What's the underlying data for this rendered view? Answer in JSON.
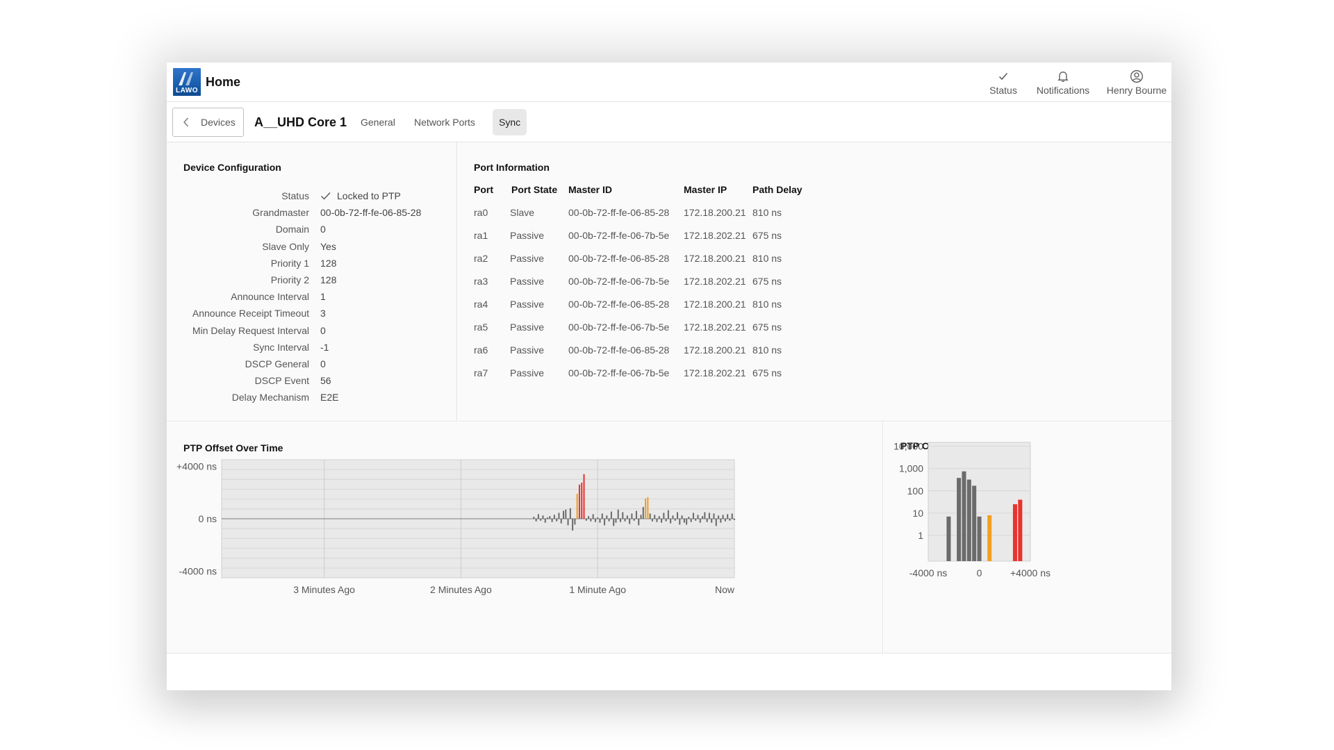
{
  "header": {
    "app_title": "Home",
    "logo_text": "LAWO",
    "actions": [
      {
        "label": "Status",
        "icon": "check-icon"
      },
      {
        "label": "Notifications",
        "icon": "bell-icon"
      },
      {
        "label": "Henry Bourne",
        "icon": "user-icon"
      }
    ]
  },
  "subnav": {
    "back_label": "Devices",
    "device_title": "A__UHD Core 1",
    "tabs": [
      {
        "label": "General",
        "active": false
      },
      {
        "label": "Network Ports",
        "active": false
      },
      {
        "label": "Sync",
        "active": true
      }
    ]
  },
  "device_config": {
    "title": "Device Configuration",
    "rows": [
      {
        "key": "Status",
        "value": "Locked to PTP",
        "icon": "check-icon"
      },
      {
        "key": "Grandmaster",
        "value": "00-0b-72-ff-fe-06-85-28"
      },
      {
        "key": "Domain",
        "value": "0"
      },
      {
        "key": "Slave Only",
        "value": "Yes"
      },
      {
        "key": "Priority 1",
        "value": "128"
      },
      {
        "key": "Priority 2",
        "value": "128"
      },
      {
        "key": "Announce Interval",
        "value": "1"
      },
      {
        "key": "Announce Receipt Timeout",
        "value": "3"
      },
      {
        "key": "Min Delay Request Interval",
        "value": "0"
      },
      {
        "key": "Sync Interval",
        "value": "-1"
      },
      {
        "key": "DSCP General",
        "value": "0"
      },
      {
        "key": "DSCP Event",
        "value": "56"
      },
      {
        "key": "Delay Mechanism",
        "value": "E2E"
      }
    ]
  },
  "port_info": {
    "title": "Port Information",
    "columns": [
      "Port",
      "Port State",
      "Master ID",
      "Master IP",
      "Path Delay"
    ],
    "rows": [
      [
        "ra0",
        "Slave",
        "00-0b-72-ff-fe-06-85-28",
        "172.18.200.21",
        "810 ns"
      ],
      [
        "ra1",
        "Passive",
        "00-0b-72-ff-fe-06-7b-5e",
        "172.18.202.21",
        "675 ns"
      ],
      [
        "ra2",
        "Passive",
        "00-0b-72-ff-fe-06-85-28",
        "172.18.200.21",
        "810 ns"
      ],
      [
        "ra3",
        "Passive",
        "00-0b-72-ff-fe-06-7b-5e",
        "172.18.202.21",
        "675 ns"
      ],
      [
        "ra4",
        "Passive",
        "00-0b-72-ff-fe-06-85-28",
        "172.18.200.21",
        "810 ns"
      ],
      [
        "ra5",
        "Passive",
        "00-0b-72-ff-fe-06-7b-5e",
        "172.18.202.21",
        "675 ns"
      ],
      [
        "ra6",
        "Passive",
        "00-0b-72-ff-fe-06-85-28",
        "172.18.200.21",
        "810 ns"
      ],
      [
        "ra7",
        "Passive",
        "00-0b-72-ff-fe-06-7b-5e",
        "172.18.202.21",
        "675 ns"
      ]
    ]
  },
  "colors": {
    "bar_normal": "#6b6b6b",
    "bar_warning": "#f0a020",
    "bar_alert": "#e8332e",
    "plot_bg": "#e9e9e9",
    "grid": "#d2d2d2"
  },
  "chart_data": [
    {
      "type": "bar",
      "title": "PTP Offset Over Time",
      "y_ticks": [
        "+4000 ns",
        "0 ns",
        "-4000 ns"
      ],
      "ylim": [
        -4500,
        4500
      ],
      "x_ticks": [
        "3 Minutes Ago",
        "2 Minutes Ago",
        "1 Minute Ago",
        "Now"
      ],
      "xlim": [
        -225,
        0
      ],
      "x_tick_values": [
        -180,
        -120,
        -60,
        0
      ],
      "grid": true,
      "thresholds": {
        "warning": 1000,
        "alert": 2000
      },
      "x": [
        -88,
        -87,
        -86,
        -85,
        -84,
        -83,
        -82,
        -81,
        -80,
        -79,
        -78,
        -77,
        -76,
        -75,
        -74,
        -73,
        -72,
        -71,
        -70,
        -69,
        -68,
        -67,
        -66,
        -65,
        -64,
        -63,
        -62,
        -61,
        -60,
        -59,
        -58,
        -57,
        -56,
        -55,
        -54,
        -53,
        -52,
        -51,
        -50,
        -49,
        -48,
        -47,
        -46,
        -45,
        -44,
        -43,
        -42,
        -41,
        -40,
        -39,
        -38,
        -37,
        -36,
        -35,
        -34,
        -33,
        -32,
        -31,
        -30,
        -29,
        -28,
        -27,
        -26,
        -25,
        -24,
        -23,
        -22,
        -21,
        -20,
        -19,
        -18,
        -17,
        -16,
        -15,
        -14,
        -13,
        -12,
        -11,
        -10,
        -9,
        -8,
        -7,
        -6,
        -5,
        -4,
        -3,
        -2,
        -1,
        0
      ],
      "values": [
        150,
        -200,
        350,
        -150,
        250,
        -300,
        100,
        200,
        -250,
        300,
        -200,
        450,
        -350,
        600,
        700,
        -500,
        800,
        -900,
        -450,
        1900,
        2600,
        2750,
        3400,
        -150,
        200,
        -200,
        350,
        -250,
        100,
        -300,
        400,
        -500,
        250,
        -200,
        550,
        -550,
        -300,
        700,
        -250,
        500,
        -200,
        250,
        -400,
        400,
        -150,
        600,
        -500,
        300,
        900,
        1550,
        1650,
        400,
        -200,
        300,
        -250,
        200,
        -300,
        450,
        -200,
        650,
        -350,
        250,
        -150,
        500,
        -450,
        250,
        -300,
        -450,
        150,
        -250,
        450,
        -150,
        300,
        -300,
        200,
        500,
        -250,
        450,
        -300,
        400,
        -550,
        250,
        -300,
        300,
        -200,
        350,
        -150,
        400,
        -100
      ]
    },
    {
      "type": "bar",
      "title": "PTP Offset Histogram",
      "y_scale": "log",
      "y_ticks": [
        "10,000",
        "1,000",
        "100",
        "10",
        "1"
      ],
      "y_tick_values": [
        10000,
        1000,
        100,
        10,
        1
      ],
      "ylim": [
        0.07,
        15000
      ],
      "x_ticks": [
        "-4000 ns",
        "0",
        "+4000 ns"
      ],
      "x_tick_values": [
        -4000,
        0,
        4000
      ],
      "xlim": [
        -4000,
        4000
      ],
      "bin_width": 400,
      "grid": true,
      "bins": [
        {
          "x": -2400,
          "count": 7,
          "level": "normal"
        },
        {
          "x": -1600,
          "count": 380,
          "level": "normal"
        },
        {
          "x": -1200,
          "count": 750,
          "level": "normal"
        },
        {
          "x": -800,
          "count": 320,
          "level": "normal"
        },
        {
          "x": -400,
          "count": 170,
          "level": "normal"
        },
        {
          "x": 0,
          "count": 7,
          "level": "normal"
        },
        {
          "x": 800,
          "count": 8,
          "level": "warning"
        },
        {
          "x": 2800,
          "count": 25,
          "level": "alert"
        },
        {
          "x": 3200,
          "count": 40,
          "level": "alert"
        }
      ]
    }
  ]
}
